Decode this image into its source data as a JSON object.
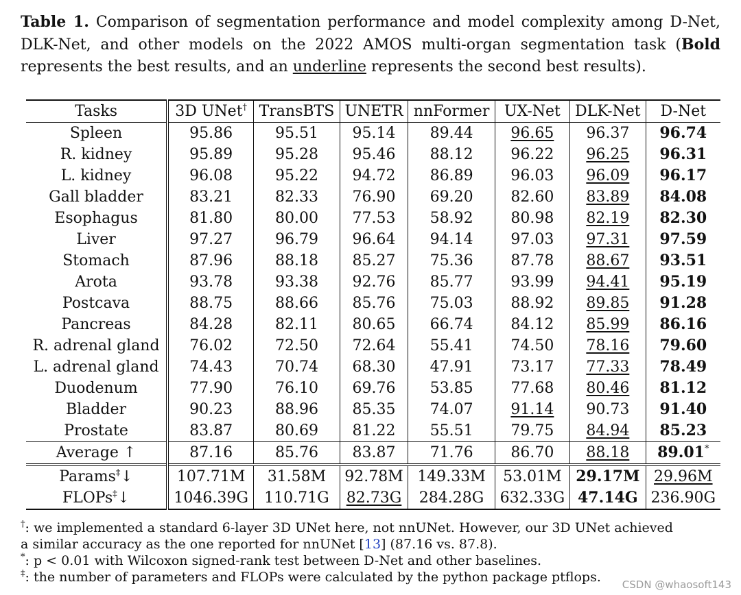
{
  "caption": {
    "label": "Table 1.",
    "text_a": "Comparison of segmentation performance and model complexity among D-Net, DLK-Net, and other models on the 2022 AMOS multi-organ segmentation task (",
    "bold_word": "Bold",
    "text_b": " represents the best results, and an ",
    "underline_word": "underline",
    "text_c": " represents the second best results)."
  },
  "table": {
    "headers": [
      "Tasks",
      "3D UNet",
      "TransBTS",
      "UNETR",
      "nnFormer",
      "UX-Net",
      "DLK-Net",
      "D-Net"
    ],
    "header_marks": [
      "",
      "†",
      "",
      "",
      "",
      "",
      "",
      ""
    ],
    "rows": [
      {
        "task": "Spleen",
        "values": [
          "95.86",
          "95.51",
          "95.14",
          "89.44",
          "96.65",
          "96.37",
          "96.74"
        ],
        "style": [
          "",
          "",
          "",
          "",
          "u",
          "",
          "b"
        ]
      },
      {
        "task": "R. kidney",
        "values": [
          "95.89",
          "95.28",
          "95.46",
          "88.12",
          "96.22",
          "96.25",
          "96.31"
        ],
        "style": [
          "",
          "",
          "",
          "",
          "",
          "u",
          "b"
        ]
      },
      {
        "task": "L. kidney",
        "values": [
          "96.08",
          "95.22",
          "94.72",
          "86.89",
          "96.03",
          "96.09",
          "96.17"
        ],
        "style": [
          "",
          "",
          "",
          "",
          "",
          "u",
          "b"
        ]
      },
      {
        "task": "Gall bladder",
        "values": [
          "83.21",
          "82.33",
          "76.90",
          "69.20",
          "82.60",
          "83.89",
          "84.08"
        ],
        "style": [
          "",
          "",
          "",
          "",
          "",
          "u",
          "b"
        ]
      },
      {
        "task": "Esophagus",
        "values": [
          "81.80",
          "80.00",
          "77.53",
          "58.92",
          "80.98",
          "82.19",
          "82.30"
        ],
        "style": [
          "",
          "",
          "",
          "",
          "",
          "u",
          "b"
        ]
      },
      {
        "task": "Liver",
        "values": [
          "97.27",
          "96.79",
          "96.64",
          "94.14",
          "97.03",
          "97.31",
          "97.59"
        ],
        "style": [
          "",
          "",
          "",
          "",
          "",
          "u",
          "b"
        ]
      },
      {
        "task": "Stomach",
        "values": [
          "87.96",
          "88.18",
          "85.27",
          "75.36",
          "87.78",
          "88.67",
          "93.51"
        ],
        "style": [
          "",
          "",
          "",
          "",
          "",
          "u",
          "b"
        ]
      },
      {
        "task": "Arota",
        "values": [
          "93.78",
          "93.38",
          "92.76",
          "85.77",
          "93.99",
          "94.41",
          "95.19"
        ],
        "style": [
          "",
          "",
          "",
          "",
          "",
          "u",
          "b"
        ]
      },
      {
        "task": "Postcava",
        "values": [
          "88.75",
          "88.66",
          "85.76",
          "75.03",
          "88.92",
          "89.85",
          "91.28"
        ],
        "style": [
          "",
          "",
          "",
          "",
          "",
          "u",
          "b"
        ]
      },
      {
        "task": "Pancreas",
        "values": [
          "84.28",
          "82.11",
          "80.65",
          "66.74",
          "84.12",
          "85.99",
          "86.16"
        ],
        "style": [
          "",
          "",
          "",
          "",
          "",
          "u",
          "b"
        ]
      },
      {
        "task": "R. adrenal gland",
        "values": [
          "76.02",
          "72.50",
          "72.64",
          "55.41",
          "74.50",
          "78.16",
          "79.60"
        ],
        "style": [
          "",
          "",
          "",
          "",
          "",
          "u",
          "b"
        ]
      },
      {
        "task": "L. adrenal gland",
        "values": [
          "74.43",
          "70.74",
          "68.30",
          "47.91",
          "73.17",
          "77.33",
          "78.49"
        ],
        "style": [
          "",
          "",
          "",
          "",
          "",
          "u",
          "b"
        ]
      },
      {
        "task": "Duodenum",
        "values": [
          "77.90",
          "76.10",
          "69.76",
          "53.85",
          "77.68",
          "80.46",
          "81.12"
        ],
        "style": [
          "",
          "",
          "",
          "",
          "",
          "u",
          "b"
        ]
      },
      {
        "task": "Bladder",
        "values": [
          "90.23",
          "88.96",
          "85.35",
          "74.07",
          "91.14",
          "90.73",
          "91.40"
        ],
        "style": [
          "",
          "",
          "",
          "",
          "u",
          "",
          "b"
        ]
      },
      {
        "task": "Prostate",
        "values": [
          "83.87",
          "80.69",
          "81.22",
          "55.51",
          "79.75",
          "84.94",
          "85.23"
        ],
        "style": [
          "",
          "",
          "",
          "",
          "",
          "u",
          "b"
        ]
      }
    ],
    "average": {
      "task": "Average ↑",
      "values": [
        "87.16",
        "85.76",
        "83.87",
        "71.76",
        "86.70",
        "88.18",
        "89.01"
      ],
      "style": [
        "",
        "",
        "",
        "",
        "",
        "u",
        "b"
      ],
      "marks": [
        "",
        "",
        "",
        "",
        "",
        "",
        "*"
      ]
    },
    "complexity": [
      {
        "task": "Params",
        "mark": "‡",
        "arrow": "↓",
        "values": [
          "107.71M",
          "31.58M",
          "92.78M",
          "149.33M",
          "53.01M",
          "29.17M",
          "29.96M"
        ],
        "style": [
          "",
          "",
          "",
          "",
          "",
          "b",
          "u"
        ]
      },
      {
        "task": "FLOPs",
        "mark": "‡",
        "arrow": "↓",
        "values": [
          "1046.39G",
          "110.71G",
          "82.73G",
          "284.28G",
          "632.33G",
          "47.14G",
          "236.90G"
        ],
        "style": [
          "",
          "",
          "u",
          "",
          "",
          "b",
          ""
        ]
      }
    ]
  },
  "footnotes": {
    "n1_mark": "†",
    "n1_text": ": we implemented a standard 6-layer 3D UNet here, not nnUNet. However, our 3D UNet achieved",
    "n1_text2a": "a similar accuracy as the one reported for nnUNet [",
    "n1_ref": "13",
    "n1_text2b": "] (87.16 vs. 87.8).",
    "n2_mark": "*",
    "n2_text": ": p < 0.01 with Wilcoxon signed-rank test between D-Net and other baselines.",
    "n3_mark": "‡",
    "n3_text": ": the number of parameters and FLOPs were calculated by the python package ptflops."
  },
  "watermark": "CSDN @whaosoft143"
}
